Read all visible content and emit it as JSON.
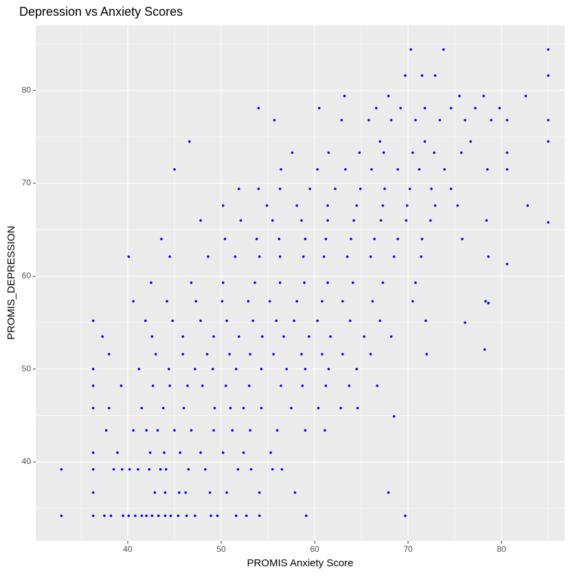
{
  "chart_data": {
    "type": "scatter",
    "title": "Depression vs Anxiety Scores",
    "x_label": "PROMIS Anxiety Score",
    "y_label": "PROMIS_DEPRESSION",
    "color": "#0000ff",
    "grid": true,
    "xlim": [
      30.15,
      86.76
    ],
    "ylim": [
      31.5,
      87.0
    ],
    "xticks": [
      40,
      50,
      60,
      70,
      80
    ],
    "yticks": [
      40,
      50,
      60,
      70,
      80
    ],
    "points": [
      [
        32.9,
        34.2
      ],
      [
        36.3,
        34.2
      ],
      [
        37.5,
        34.2
      ],
      [
        38.2,
        34.2
      ],
      [
        39.5,
        34.2
      ],
      [
        40.1,
        34.2
      ],
      [
        40.8,
        34.2
      ],
      [
        41.5,
        34.2
      ],
      [
        42.0,
        34.2
      ],
      [
        42.6,
        34.2
      ],
      [
        43.3,
        34.2
      ],
      [
        44.0,
        34.2
      ],
      [
        44.6,
        34.2
      ],
      [
        45.4,
        34.2
      ],
      [
        46.3,
        34.2
      ],
      [
        47.2,
        34.2
      ],
      [
        48.9,
        34.2
      ],
      [
        49.6,
        34.2
      ],
      [
        51.6,
        34.2
      ],
      [
        52.7,
        34.2
      ],
      [
        54.1,
        34.2
      ],
      [
        59.1,
        34.2
      ],
      [
        69.7,
        34.2
      ],
      [
        36.3,
        36.7
      ],
      [
        42.9,
        36.7
      ],
      [
        44.0,
        36.7
      ],
      [
        45.5,
        36.7
      ],
      [
        46.2,
        36.7
      ],
      [
        48.8,
        36.7
      ],
      [
        50.6,
        36.7
      ],
      [
        54.1,
        36.7
      ],
      [
        57.9,
        36.7
      ],
      [
        67.9,
        36.7
      ],
      [
        32.9,
        39.2
      ],
      [
        36.3,
        39.2
      ],
      [
        38.5,
        39.2
      ],
      [
        39.4,
        39.2
      ],
      [
        40.2,
        39.2
      ],
      [
        41.1,
        39.2
      ],
      [
        42.3,
        39.2
      ],
      [
        43.5,
        39.2
      ],
      [
        44.1,
        39.2
      ],
      [
        46.5,
        39.2
      ],
      [
        48.3,
        39.2
      ],
      [
        51.8,
        39.2
      ],
      [
        53.2,
        39.2
      ],
      [
        55.5,
        39.2
      ],
      [
        56.5,
        39.2
      ],
      [
        36.3,
        41.0
      ],
      [
        38.9,
        41.0
      ],
      [
        42.4,
        41.0
      ],
      [
        43.9,
        41.0
      ],
      [
        45.6,
        41.0
      ],
      [
        47.8,
        41.0
      ],
      [
        50.2,
        41.0
      ],
      [
        52.4,
        41.0
      ],
      [
        55.3,
        41.0
      ],
      [
        37.7,
        43.4
      ],
      [
        40.6,
        43.4
      ],
      [
        42.0,
        43.4
      ],
      [
        43.2,
        43.4
      ],
      [
        45.0,
        43.4
      ],
      [
        46.8,
        43.4
      ],
      [
        49.2,
        43.4
      ],
      [
        51.2,
        43.4
      ],
      [
        53.1,
        43.4
      ],
      [
        56.0,
        43.4
      ],
      [
        59.0,
        43.4
      ],
      [
        61.1,
        43.4
      ],
      [
        36.3,
        45.8
      ],
      [
        38.0,
        45.8
      ],
      [
        41.5,
        45.8
      ],
      [
        43.8,
        45.8
      ],
      [
        46.0,
        45.8
      ],
      [
        49.3,
        45.8
      ],
      [
        51.0,
        45.8
      ],
      [
        52.4,
        45.8
      ],
      [
        54.3,
        45.8
      ],
      [
        57.5,
        45.8
      ],
      [
        60.4,
        45.8
      ],
      [
        62.8,
        45.8
      ],
      [
        64.6,
        45.8
      ],
      [
        36.3,
        48.2
      ],
      [
        39.3,
        48.2
      ],
      [
        42.7,
        48.2
      ],
      [
        44.5,
        48.2
      ],
      [
        46.4,
        48.2
      ],
      [
        48.0,
        48.2
      ],
      [
        50.5,
        48.2
      ],
      [
        53.0,
        48.2
      ],
      [
        56.4,
        48.2
      ],
      [
        58.7,
        48.2
      ],
      [
        61.2,
        48.2
      ],
      [
        63.7,
        48.2
      ],
      [
        66.7,
        48.2
      ],
      [
        36.3,
        50.0
      ],
      [
        41.2,
        50.0
      ],
      [
        44.4,
        50.0
      ],
      [
        47.2,
        50.0
      ],
      [
        49.1,
        50.0
      ],
      [
        51.6,
        50.0
      ],
      [
        54.3,
        50.0
      ],
      [
        57.0,
        50.0
      ],
      [
        59.0,
        50.0
      ],
      [
        61.5,
        50.0
      ],
      [
        64.5,
        50.0
      ],
      [
        38.0,
        51.6
      ],
      [
        43.0,
        51.6
      ],
      [
        45.9,
        51.6
      ],
      [
        48.5,
        51.6
      ],
      [
        50.9,
        51.6
      ],
      [
        53.1,
        51.6
      ],
      [
        55.6,
        51.6
      ],
      [
        58.6,
        51.6
      ],
      [
        60.8,
        51.6
      ],
      [
        63.0,
        51.6
      ],
      [
        66.0,
        51.6
      ],
      [
        72.0,
        51.6
      ],
      [
        37.3,
        53.5
      ],
      [
        42.6,
        53.5
      ],
      [
        45.9,
        53.5
      ],
      [
        49.2,
        53.5
      ],
      [
        51.9,
        53.5
      ],
      [
        54.4,
        53.5
      ],
      [
        56.7,
        53.5
      ],
      [
        59.4,
        53.5
      ],
      [
        61.7,
        53.5
      ],
      [
        65.3,
        53.5
      ],
      [
        68.2,
        53.5
      ],
      [
        36.3,
        55.2
      ],
      [
        41.9,
        55.2
      ],
      [
        44.8,
        55.2
      ],
      [
        47.8,
        55.2
      ],
      [
        50.6,
        55.2
      ],
      [
        53.4,
        55.2
      ],
      [
        55.9,
        55.2
      ],
      [
        57.8,
        55.2
      ],
      [
        60.3,
        55.2
      ],
      [
        63.8,
        55.2
      ],
      [
        67.0,
        55.2
      ],
      [
        71.9,
        55.2
      ],
      [
        40.6,
        57.3
      ],
      [
        44.2,
        57.3
      ],
      [
        47.3,
        57.3
      ],
      [
        50.1,
        57.3
      ],
      [
        52.9,
        57.3
      ],
      [
        55.2,
        57.3
      ],
      [
        58.1,
        57.3
      ],
      [
        60.8,
        57.3
      ],
      [
        63.0,
        57.3
      ],
      [
        66.2,
        57.3
      ],
      [
        70.5,
        57.3
      ],
      [
        78.3,
        57.3
      ],
      [
        42.5,
        59.3
      ],
      [
        46.8,
        59.3
      ],
      [
        50.2,
        59.3
      ],
      [
        53.6,
        59.3
      ],
      [
        56.3,
        59.3
      ],
      [
        58.9,
        59.3
      ],
      [
        61.4,
        59.3
      ],
      [
        64.1,
        59.3
      ],
      [
        67.3,
        59.3
      ],
      [
        70.8,
        59.3
      ],
      [
        40.1,
        62.1
      ],
      [
        44.5,
        62.1
      ],
      [
        48.6,
        62.1
      ],
      [
        51.5,
        62.1
      ],
      [
        54.1,
        62.1
      ],
      [
        56.3,
        62.1
      ],
      [
        58.8,
        62.1
      ],
      [
        61.0,
        62.1
      ],
      [
        63.5,
        62.1
      ],
      [
        66.0,
        62.1
      ],
      [
        68.5,
        62.1
      ],
      [
        71.4,
        62.1
      ],
      [
        78.6,
        62.1
      ],
      [
        43.6,
        64.0
      ],
      [
        50.4,
        64.0
      ],
      [
        53.8,
        64.0
      ],
      [
        56.2,
        64.0
      ],
      [
        59.0,
        64.0
      ],
      [
        61.2,
        64.0
      ],
      [
        63.9,
        64.0
      ],
      [
        66.4,
        64.0
      ],
      [
        68.9,
        64.0
      ],
      [
        71.5,
        64.0
      ],
      [
        75.8,
        64.0
      ],
      [
        47.8,
        66.0
      ],
      [
        52.1,
        66.0
      ],
      [
        55.5,
        66.0
      ],
      [
        58.6,
        66.0
      ],
      [
        61.4,
        66.0
      ],
      [
        64.2,
        66.0
      ],
      [
        67.1,
        66.0
      ],
      [
        69.8,
        66.0
      ],
      [
        72.4,
        66.0
      ],
      [
        78.4,
        66.0
      ],
      [
        50.2,
        67.6
      ],
      [
        54.9,
        67.6
      ],
      [
        58.1,
        67.6
      ],
      [
        61.4,
        67.6
      ],
      [
        64.5,
        67.6
      ],
      [
        67.3,
        67.6
      ],
      [
        69.9,
        67.6
      ],
      [
        72.9,
        67.6
      ],
      [
        75.3,
        67.6
      ],
      [
        82.8,
        67.6
      ],
      [
        51.9,
        69.4
      ],
      [
        54.0,
        69.4
      ],
      [
        56.3,
        69.4
      ],
      [
        59.5,
        69.4
      ],
      [
        62.2,
        69.4
      ],
      [
        64.9,
        69.4
      ],
      [
        67.5,
        69.4
      ],
      [
        70.2,
        69.4
      ],
      [
        72.5,
        69.4
      ],
      [
        74.6,
        69.4
      ],
      [
        45.0,
        71.5
      ],
      [
        56.4,
        71.5
      ],
      [
        60.3,
        71.5
      ],
      [
        63.3,
        71.5
      ],
      [
        66.1,
        71.5
      ],
      [
        68.9,
        71.5
      ],
      [
        71.2,
        71.5
      ],
      [
        73.9,
        71.5
      ],
      [
        78.5,
        71.5
      ],
      [
        80.6,
        71.5
      ],
      [
        57.6,
        73.3
      ],
      [
        61.5,
        73.3
      ],
      [
        64.8,
        73.3
      ],
      [
        67.4,
        73.3
      ],
      [
        70.5,
        73.3
      ],
      [
        72.8,
        73.3
      ],
      [
        75.7,
        73.3
      ],
      [
        80.6,
        73.3
      ],
      [
        46.6,
        74.5
      ],
      [
        67.0,
        74.5
      ],
      [
        71.8,
        74.5
      ],
      [
        76.7,
        74.5
      ],
      [
        85.0,
        74.5
      ],
      [
        55.7,
        76.8
      ],
      [
        62.9,
        76.8
      ],
      [
        65.8,
        76.8
      ],
      [
        68.2,
        76.8
      ],
      [
        70.8,
        76.8
      ],
      [
        73.4,
        76.8
      ],
      [
        76.1,
        76.8
      ],
      [
        78.9,
        76.8
      ],
      [
        80.6,
        76.8
      ],
      [
        85.0,
        76.8
      ],
      [
        54.0,
        78.1
      ],
      [
        60.5,
        78.1
      ],
      [
        66.6,
        78.1
      ],
      [
        69.2,
        78.1
      ],
      [
        71.8,
        78.1
      ],
      [
        74.6,
        78.1
      ],
      [
        77.2,
        78.1
      ],
      [
        79.8,
        78.1
      ],
      [
        63.2,
        79.4
      ],
      [
        67.9,
        79.4
      ],
      [
        75.5,
        79.4
      ],
      [
        78.1,
        79.4
      ],
      [
        82.6,
        79.4
      ],
      [
        69.7,
        81.6
      ],
      [
        71.5,
        81.6
      ],
      [
        72.9,
        81.6
      ],
      [
        85.0,
        81.6
      ],
      [
        70.3,
        84.4
      ],
      [
        73.8,
        84.4
      ],
      [
        85.0,
        84.4
      ],
      [
        78.2,
        52.1
      ],
      [
        78.6,
        57.1
      ],
      [
        85.0,
        65.8
      ],
      [
        80.6,
        61.3
      ],
      [
        68.5,
        44.9
      ],
      [
        76.1,
        55.0
      ]
    ]
  }
}
